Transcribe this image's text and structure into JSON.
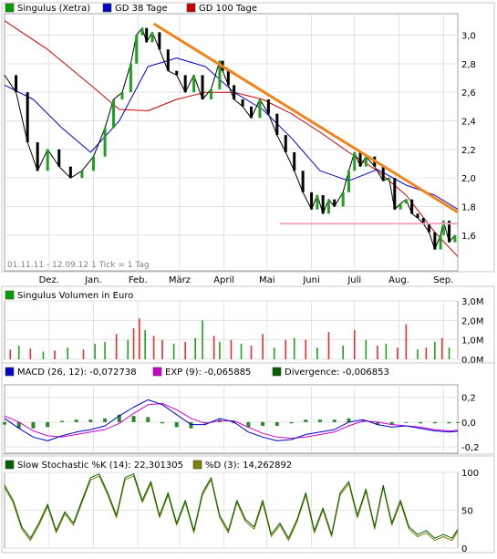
{
  "chart_data": [
    {
      "type": "line",
      "title": "",
      "legend": [
        {
          "name": "Singulus (Xetra)",
          "color": "#00a000"
        },
        {
          "name": "GD 38 Tage",
          "color": "#0000cc"
        },
        {
          "name": "GD 100 Tage",
          "color": "#cc0000"
        }
      ],
      "months": [
        "Dez.",
        "Jan.",
        "Feb.",
        "März",
        "April",
        "Mai",
        "Juni",
        "Juli",
        "Aug.",
        "Sep."
      ],
      "month_positions": [
        31,
        62,
        93,
        122,
        153,
        183,
        214,
        244,
        275,
        306
      ],
      "period_note": "01.11.11 - 12.09.12   1 Tick = 1 Tag",
      "x_range": [
        0,
        316
      ],
      "ylim": [
        1.35,
        3.15
      ],
      "yticks": [
        1.6,
        1.8,
        2.0,
        2.2,
        2.4,
        2.6,
        2.8,
        3.0
      ],
      "ytick_labels": [
        "1,6",
        "1,8",
        "2,0",
        "2,2",
        "2,4",
        "2,6",
        "2,8",
        "3,0"
      ],
      "price_days": [
        0,
        8,
        16,
        23,
        30,
        38,
        46,
        54,
        62,
        70,
        76,
        82,
        88,
        92,
        96,
        99,
        103,
        108,
        114,
        120,
        126,
        132,
        138,
        144,
        150,
        152,
        156,
        160,
        166,
        172,
        178,
        184,
        190,
        196,
        202,
        208,
        214,
        218,
        222,
        226,
        230,
        236,
        240,
        244,
        248,
        252,
        258,
        264,
        268,
        272,
        276,
        280,
        284,
        288,
        292,
        296,
        300,
        304,
        306,
        310,
        314
      ],
      "price_values": [
        2.72,
        2.6,
        2.25,
        2.05,
        2.2,
        2.08,
        2.0,
        2.05,
        2.15,
        2.35,
        2.55,
        2.6,
        2.8,
        3.0,
        3.05,
        2.95,
        3.02,
        2.9,
        2.75,
        2.72,
        2.6,
        2.72,
        2.55,
        2.62,
        2.82,
        2.75,
        2.65,
        2.55,
        2.5,
        2.42,
        2.55,
        2.45,
        2.3,
        2.18,
        2.05,
        1.9,
        1.78,
        1.88,
        1.75,
        1.85,
        1.8,
        1.9,
        2.05,
        2.18,
        2.08,
        2.15,
        2.08,
        1.98,
        2.0,
        1.78,
        1.82,
        1.85,
        1.75,
        1.72,
        1.68,
        1.62,
        1.5,
        1.6,
        1.7,
        1.55,
        1.6
      ],
      "sma38_days": [
        0,
        20,
        40,
        60,
        80,
        100,
        120,
        140,
        160,
        180,
        200,
        220,
        240,
        260,
        280,
        300,
        316
      ],
      "sma38_values": [
        2.65,
        2.55,
        2.35,
        2.18,
        2.4,
        2.78,
        2.84,
        2.78,
        2.6,
        2.48,
        2.28,
        2.05,
        1.98,
        2.06,
        1.95,
        1.88,
        1.78
      ],
      "sma100_days": [
        0,
        30,
        60,
        80,
        100,
        120,
        140,
        160,
        180,
        200,
        220,
        240,
        260,
        280,
        300,
        316
      ],
      "sma100_values": [
        3.1,
        2.9,
        2.65,
        2.48,
        2.47,
        2.55,
        2.6,
        2.6,
        2.55,
        2.45,
        2.32,
        2.18,
        2.05,
        1.88,
        1.62,
        1.45
      ],
      "annotations": [
        {
          "type": "trendline",
          "color": "#f0841c",
          "x": [
            104,
            316
          ],
          "y": [
            3.08,
            1.76
          ]
        },
        {
          "type": "support",
          "color": "#f4a6c8",
          "x": [
            192,
            316
          ],
          "y": [
            1.68,
            1.68
          ]
        }
      ]
    },
    {
      "type": "bar",
      "title": "Singulus Volumen in Euro",
      "legend": [
        {
          "name": "Singulus Volumen in Euro",
          "color": "#00a000"
        }
      ],
      "ylim": [
        0,
        3.0
      ],
      "yticks": [
        0,
        1,
        2,
        3
      ],
      "ytick_labels": [
        "0,0M",
        "1,0M",
        "2,0M",
        "3,0M"
      ],
      "days": [
        4,
        10,
        18,
        27,
        35,
        44,
        55,
        63,
        70,
        78,
        86,
        90,
        94,
        98,
        104,
        110,
        118,
        126,
        133,
        138,
        146,
        150,
        158,
        165,
        172,
        180,
        188,
        196,
        202,
        210,
        218,
        226,
        236,
        244,
        252,
        260,
        266,
        274,
        280,
        288,
        294,
        300,
        305,
        310
      ],
      "values": [
        0.5,
        0.7,
        0.55,
        0.4,
        0.45,
        0.6,
        0.5,
        0.8,
        0.9,
        1.3,
        1.0,
        1.6,
        2.1,
        1.5,
        1.2,
        1.0,
        0.8,
        0.9,
        1.1,
        2.0,
        1.2,
        0.9,
        1.0,
        0.8,
        0.7,
        1.3,
        0.6,
        1.0,
        1.1,
        1.0,
        0.6,
        1.4,
        0.7,
        1.5,
        1.0,
        0.7,
        0.8,
        0.6,
        1.8,
        0.5,
        0.6,
        0.9,
        1.1,
        0.6
      ],
      "colors": [
        "r",
        "g",
        "r",
        "g",
        "r",
        "g",
        "r",
        "g",
        "g",
        "r",
        "g",
        "r",
        "r",
        "g",
        "r",
        "r",
        "g",
        "r",
        "g",
        "g",
        "r",
        "g",
        "r",
        "g",
        "r",
        "r",
        "g",
        "r",
        "g",
        "r",
        "g",
        "r",
        "g",
        "r",
        "g",
        "r",
        "g",
        "r",
        "r",
        "g",
        "r",
        "g",
        "r",
        "g"
      ],
      "color_map": {
        "r": "#e03030",
        "g": "#20a020"
      }
    },
    {
      "type": "line",
      "title": "",
      "legend": [
        {
          "name": "MACD (26, 12): -0,072738",
          "color": "#0000cc"
        },
        {
          "name": "EXP (9): -0,065885",
          "color": "#cc00cc"
        },
        {
          "name": "Divergence: -0,006853",
          "color": "#006000"
        }
      ],
      "ylim": [
        -0.25,
        0.3
      ],
      "yticks": [
        -0.2,
        0.0,
        0.2
      ],
      "ytick_labels": [
        "-0,2",
        "0,0",
        "0,2"
      ],
      "macd_days": [
        0,
        10,
        20,
        30,
        40,
        50,
        60,
        70,
        80,
        90,
        100,
        110,
        120,
        130,
        140,
        150,
        160,
        170,
        180,
        190,
        200,
        210,
        220,
        230,
        240,
        250,
        260,
        270,
        280,
        290,
        300,
        310,
        316
      ],
      "macd_values": [
        0.03,
        -0.05,
        -0.12,
        -0.15,
        -0.11,
        -0.08,
        -0.06,
        -0.03,
        0.05,
        0.12,
        0.18,
        0.14,
        0.06,
        -0.02,
        -0.02,
        0.03,
        0.0,
        -0.08,
        -0.12,
        -0.15,
        -0.14,
        -0.1,
        -0.08,
        -0.06,
        0.0,
        0.02,
        -0.02,
        -0.04,
        -0.03,
        -0.05,
        -0.07,
        -0.08,
        -0.073
      ],
      "exp_days": [
        0,
        10,
        20,
        30,
        40,
        50,
        60,
        70,
        80,
        90,
        100,
        110,
        120,
        130,
        140,
        150,
        160,
        170,
        180,
        190,
        200,
        210,
        220,
        230,
        240,
        250,
        260,
        270,
        280,
        290,
        300,
        310,
        316
      ],
      "exp_values": [
        0.05,
        0.0,
        -0.07,
        -0.11,
        -0.12,
        -0.1,
        -0.08,
        -0.06,
        -0.01,
        0.07,
        0.14,
        0.15,
        0.1,
        0.03,
        -0.01,
        0.01,
        0.01,
        -0.04,
        -0.09,
        -0.12,
        -0.13,
        -0.12,
        -0.1,
        -0.08,
        -0.03,
        0.01,
        0.0,
        -0.02,
        -0.03,
        -0.04,
        -0.06,
        -0.07,
        -0.066
      ],
      "div_days": [
        0,
        10,
        20,
        30,
        40,
        50,
        60,
        70,
        80,
        90,
        100,
        110,
        120,
        130,
        140,
        150,
        160,
        170,
        180,
        190,
        200,
        210,
        220,
        230,
        240,
        250,
        260,
        270,
        280,
        290,
        300,
        310,
        316
      ],
      "div_values": [
        -0.02,
        -0.05,
        -0.05,
        -0.04,
        0.01,
        0.02,
        0.02,
        0.03,
        0.06,
        0.05,
        0.04,
        -0.01,
        -0.04,
        -0.05,
        -0.01,
        0.02,
        -0.01,
        -0.04,
        -0.03,
        -0.03,
        -0.01,
        0.02,
        0.02,
        0.02,
        0.03,
        0.01,
        -0.02,
        -0.02,
        0.0,
        -0.01,
        -0.01,
        -0.01,
        -0.007
      ]
    },
    {
      "type": "line",
      "title": "",
      "legend": [
        {
          "name": "Slow Stochastic %K (14): 22,301305",
          "color": "#006000"
        },
        {
          "name": "%D (3): 14,262892",
          "color": "#808000"
        }
      ],
      "ylim": [
        0,
        100
      ],
      "yticks": [
        0,
        50,
        100
      ],
      "ytick_labels": [
        "0",
        "50",
        "100"
      ],
      "k_days": [
        0,
        6,
        12,
        18,
        24,
        30,
        36,
        42,
        48,
        54,
        60,
        66,
        72,
        78,
        84,
        90,
        96,
        102,
        108,
        114,
        120,
        126,
        132,
        138,
        144,
        150,
        156,
        162,
        168,
        174,
        180,
        186,
        192,
        198,
        204,
        210,
        216,
        222,
        228,
        234,
        240,
        246,
        252,
        258,
        264,
        270,
        276,
        282,
        288,
        294,
        300,
        306,
        312,
        316
      ],
      "k_values": [
        80,
        60,
        25,
        10,
        30,
        55,
        20,
        45,
        30,
        60,
        90,
        95,
        70,
        40,
        90,
        95,
        60,
        85,
        40,
        70,
        30,
        60,
        20,
        70,
        90,
        40,
        20,
        60,
        35,
        25,
        60,
        15,
        30,
        10,
        35,
        70,
        20,
        50,
        15,
        70,
        85,
        40,
        75,
        25,
        80,
        30,
        60,
        25,
        15,
        20,
        10,
        15,
        10,
        22
      ]
    }
  ]
}
